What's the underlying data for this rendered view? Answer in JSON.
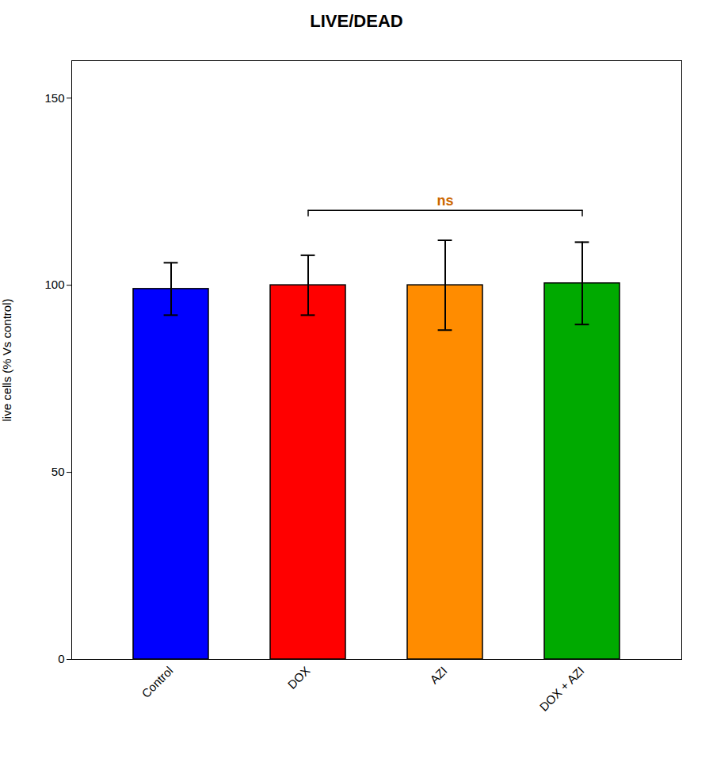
{
  "chart_data": {
    "type": "bar",
    "title": "LIVE/DEAD",
    "categories": [
      "Control",
      "DOX",
      "AZI",
      "DOX + AZI"
    ],
    "values": [
      99,
      100,
      100,
      100.5
    ],
    "errors": [
      7,
      8,
      12,
      11
    ],
    "colors": [
      "#0000FF",
      "#FF0000",
      "#FF8C00",
      "#00AA00"
    ],
    "ylabel": "live cells (% Vs control)",
    "ylim": [
      0,
      160
    ],
    "yticks": [
      0,
      50,
      100,
      150
    ],
    "grid": false,
    "annotations": [
      {
        "text": "ns",
        "x1": "DOX",
        "x2": "DOX + AZI",
        "y": 120,
        "color": "#CC6600"
      }
    ]
  }
}
